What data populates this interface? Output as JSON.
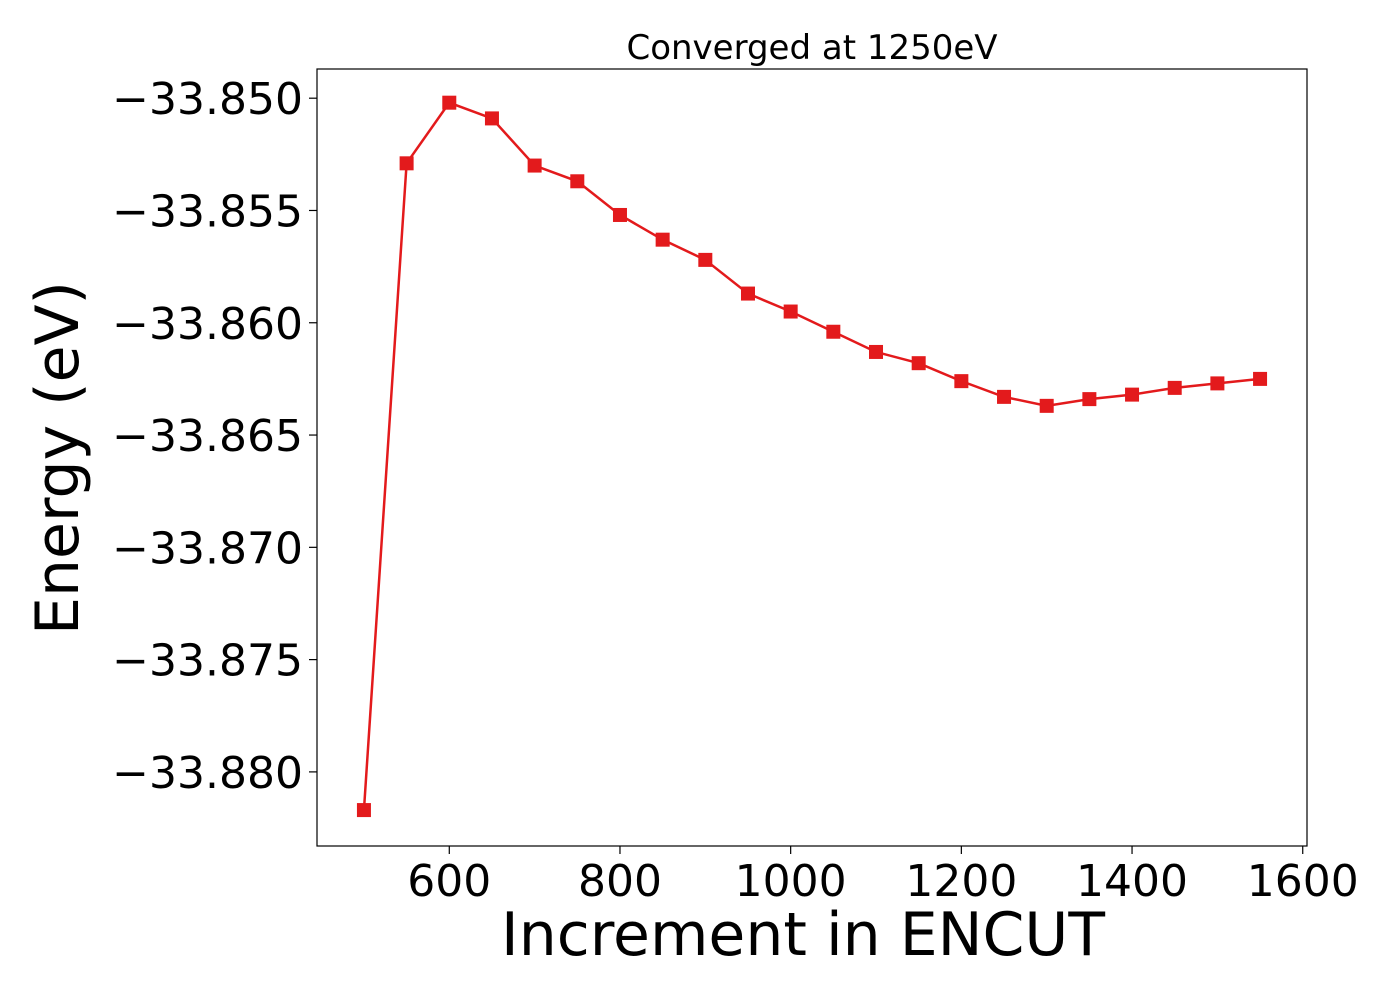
{
  "chart_data": {
    "type": "line",
    "title": "Converged at 1250eV",
    "xlabel": "Increment in ENCUT",
    "ylabel": "Energy (eV)",
    "xlim": [
      445,
      1605
    ],
    "ylim": [
      -33.8833,
      -33.8487
    ],
    "x_ticks": [
      600,
      800,
      1000,
      1200,
      1400,
      1600
    ],
    "x_tick_labels": [
      "600",
      "800",
      "1000",
      "1200",
      "1400",
      "1600"
    ],
    "y_ticks": [
      -33.85,
      -33.855,
      -33.86,
      -33.865,
      -33.87,
      -33.875,
      -33.88
    ],
    "y_tick_labels": [
      "−33.850",
      "−33.855",
      "−33.860",
      "−33.865",
      "−33.870",
      "−33.875",
      "−33.880"
    ],
    "grid": false,
    "series": [
      {
        "marker": "square",
        "color": "#e31a1c",
        "x": [
          500,
          550,
          600,
          650,
          700,
          750,
          800,
          850,
          900,
          950,
          1000,
          1050,
          1100,
          1150,
          1200,
          1250,
          1300,
          1350,
          1400,
          1450,
          1500,
          1550
        ],
        "y": [
          -33.8817,
          -33.8529,
          -33.8502,
          -33.8509,
          -33.853,
          -33.8537,
          -33.8552,
          -33.8563,
          -33.8572,
          -33.8587,
          -33.8595,
          -33.8604,
          -33.8613,
          -33.8618,
          -33.8626,
          -33.8633,
          -33.8637,
          -33.8634,
          -33.8632,
          -33.8629,
          -33.8627,
          -33.8625
        ]
      }
    ]
  }
}
